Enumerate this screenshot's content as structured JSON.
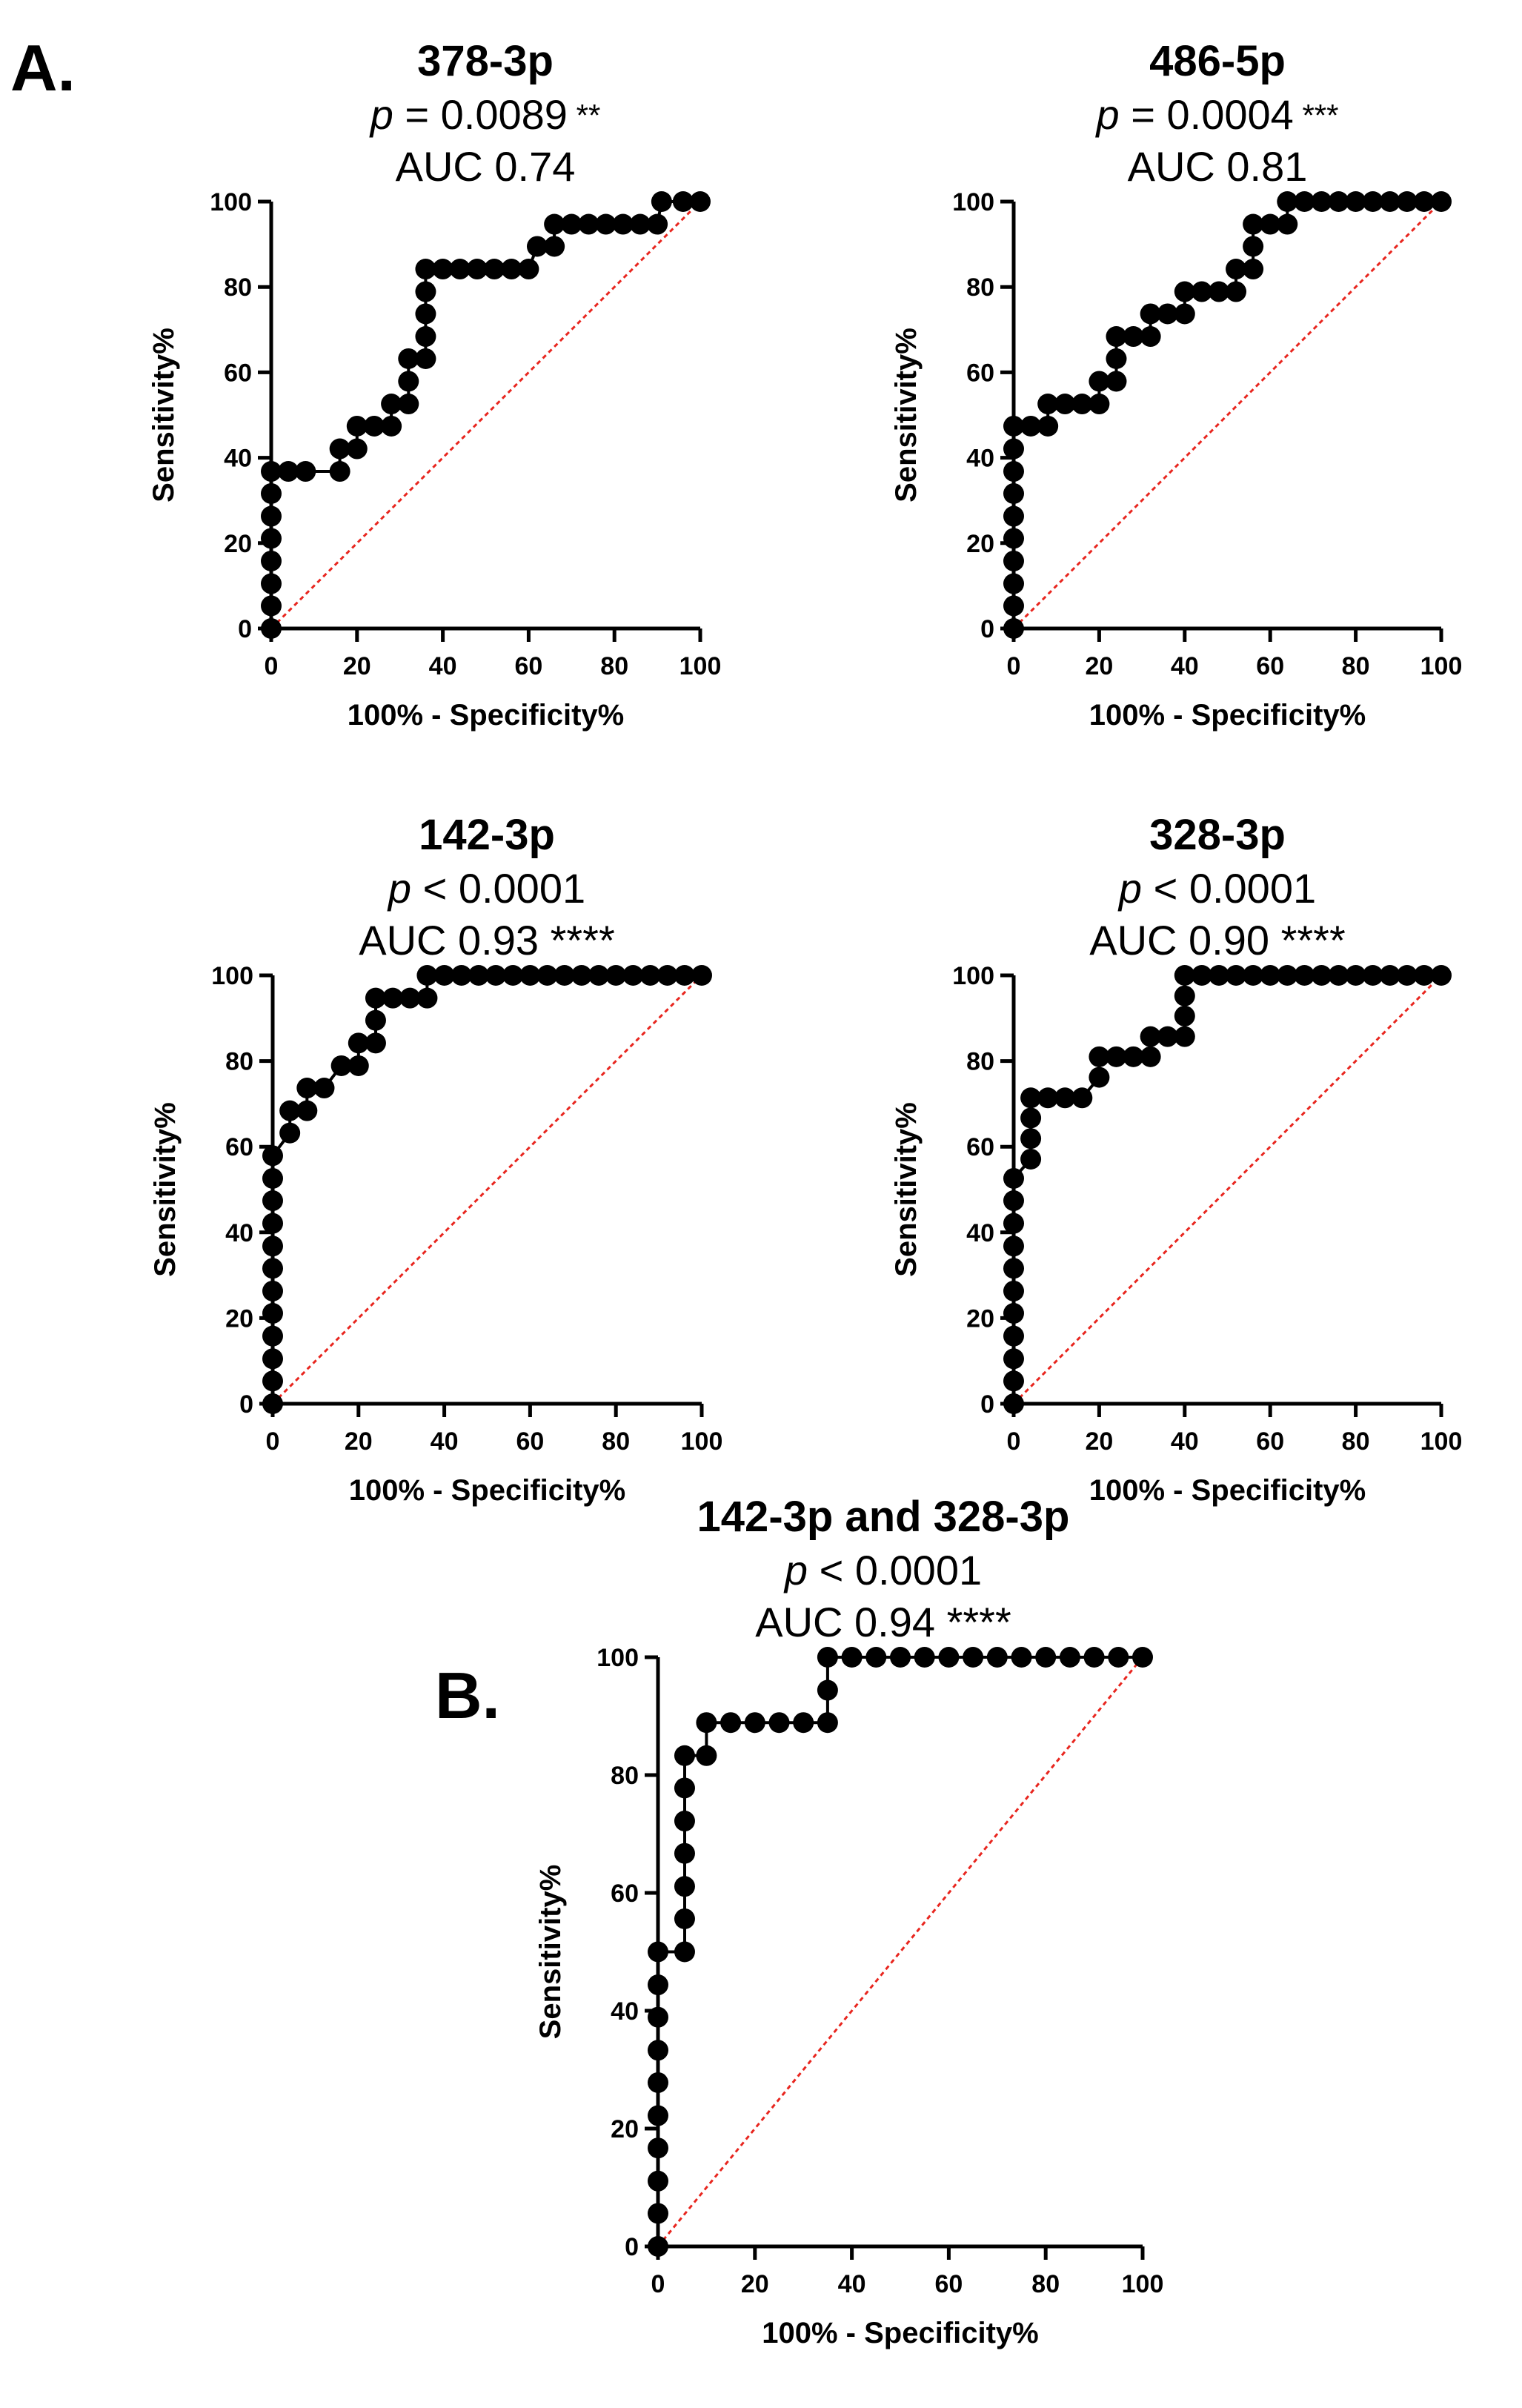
{
  "panel_labels": {
    "a": "A.",
    "b": "B."
  },
  "colors": {
    "curve": "#000000",
    "reference_line": "#e8261f",
    "axis": "#000000"
  },
  "chart_data": [
    {
      "type": "scatter",
      "panel": "A",
      "title": "378-3p",
      "p_prefix": "p",
      "p_text": " = 0.0089",
      "p_stars": " **",
      "auc_text": "AUC 0.74",
      "xlabel": "100% - Specificity%",
      "ylabel": "Sensitivity%",
      "xlim": [
        0,
        100
      ],
      "ylim": [
        0,
        100
      ],
      "xticks": [
        "0",
        "20",
        "40",
        "60",
        "80",
        "100"
      ],
      "yticks": [
        "0",
        "20",
        "40",
        "60",
        "80",
        "100"
      ],
      "reference_line": [
        [
          0,
          0
        ],
        [
          100,
          100
        ]
      ],
      "points": [
        [
          0,
          0
        ],
        [
          0,
          5.3
        ],
        [
          0,
          10.5
        ],
        [
          0,
          15.8
        ],
        [
          0,
          21.1
        ],
        [
          0,
          26.3
        ],
        [
          0,
          31.6
        ],
        [
          0,
          36.8
        ],
        [
          4,
          36.8
        ],
        [
          8,
          36.8
        ],
        [
          16,
          36.8
        ],
        [
          16,
          42.1
        ],
        [
          20,
          42.1
        ],
        [
          20,
          47.4
        ],
        [
          24,
          47.4
        ],
        [
          28,
          47.4
        ],
        [
          28,
          52.6
        ],
        [
          32,
          52.6
        ],
        [
          32,
          57.9
        ],
        [
          32,
          63.2
        ],
        [
          36,
          63.2
        ],
        [
          36,
          68.4
        ],
        [
          36,
          73.7
        ],
        [
          36,
          78.9
        ],
        [
          36,
          84.2
        ],
        [
          40,
          84.2
        ],
        [
          44,
          84.2
        ],
        [
          48,
          84.2
        ],
        [
          52,
          84.2
        ],
        [
          56,
          84.2
        ],
        [
          60,
          84.2
        ],
        [
          62,
          89.5
        ],
        [
          66,
          89.5
        ],
        [
          66,
          94.7
        ],
        [
          70,
          94.7
        ],
        [
          74,
          94.7
        ],
        [
          78,
          94.7
        ],
        [
          82,
          94.7
        ],
        [
          86,
          94.7
        ],
        [
          90,
          94.7
        ],
        [
          91,
          100
        ],
        [
          96,
          100
        ],
        [
          100,
          100
        ]
      ]
    },
    {
      "type": "scatter",
      "panel": "A",
      "title": "486-5p",
      "p_prefix": "p",
      "p_text": " = 0.0004",
      "p_stars": " ***",
      "auc_text": "AUC 0.81",
      "xlabel": "100% - Specificity%",
      "ylabel": "Sensitivity%",
      "xlim": [
        0,
        100
      ],
      "ylim": [
        0,
        100
      ],
      "xticks": [
        "0",
        "20",
        "40",
        "60",
        "80",
        "100"
      ],
      "yticks": [
        "0",
        "20",
        "40",
        "60",
        "80",
        "100"
      ],
      "reference_line": [
        [
          0,
          0
        ],
        [
          100,
          100
        ]
      ],
      "points": [
        [
          0,
          0
        ],
        [
          0,
          5.3
        ],
        [
          0,
          10.5
        ],
        [
          0,
          15.8
        ],
        [
          0,
          21.1
        ],
        [
          0,
          26.3
        ],
        [
          0,
          31.6
        ],
        [
          0,
          36.8
        ],
        [
          0,
          42.1
        ],
        [
          0,
          47.4
        ],
        [
          4,
          47.4
        ],
        [
          8,
          47.4
        ],
        [
          8,
          52.6
        ],
        [
          12,
          52.6
        ],
        [
          16,
          52.6
        ],
        [
          20,
          52.6
        ],
        [
          20,
          57.9
        ],
        [
          24,
          57.9
        ],
        [
          24,
          63.2
        ],
        [
          24,
          68.4
        ],
        [
          28,
          68.4
        ],
        [
          32,
          68.4
        ],
        [
          32,
          73.7
        ],
        [
          36,
          73.7
        ],
        [
          40,
          73.7
        ],
        [
          40,
          78.9
        ],
        [
          44,
          78.9
        ],
        [
          48,
          78.9
        ],
        [
          52,
          78.9
        ],
        [
          52,
          84.2
        ],
        [
          56,
          84.2
        ],
        [
          56,
          89.5
        ],
        [
          56,
          94.7
        ],
        [
          60,
          94.7
        ],
        [
          64,
          94.7
        ],
        [
          64,
          100
        ],
        [
          68,
          100
        ],
        [
          72,
          100
        ],
        [
          76,
          100
        ],
        [
          80,
          100
        ],
        [
          84,
          100
        ],
        [
          88,
          100
        ],
        [
          92,
          100
        ],
        [
          96,
          100
        ],
        [
          100,
          100
        ]
      ]
    },
    {
      "type": "scatter",
      "panel": "A",
      "title": "142-3p",
      "p_prefix": "p",
      "p_text": " < 0.0001",
      "p_stars": "",
      "auc_text": "AUC 0.93 ****",
      "xlabel": "100% - Specificity%",
      "ylabel": "Sensitivity%",
      "xlim": [
        0,
        100
      ],
      "ylim": [
        0,
        100
      ],
      "xticks": [
        "0",
        "20",
        "40",
        "60",
        "80",
        "100"
      ],
      "yticks": [
        "0",
        "20",
        "40",
        "60",
        "80",
        "100"
      ],
      "reference_line": [
        [
          0,
          0
        ],
        [
          100,
          100
        ]
      ],
      "points": [
        [
          0,
          0
        ],
        [
          0,
          5.3
        ],
        [
          0,
          10.5
        ],
        [
          0,
          15.8
        ],
        [
          0,
          21.1
        ],
        [
          0,
          26.3
        ],
        [
          0,
          31.6
        ],
        [
          0,
          36.8
        ],
        [
          0,
          42.1
        ],
        [
          0,
          47.4
        ],
        [
          0,
          52.6
        ],
        [
          0,
          57.9
        ],
        [
          4,
          63.2
        ],
        [
          4,
          68.4
        ],
        [
          8,
          68.4
        ],
        [
          8,
          73.7
        ],
        [
          12,
          73.7
        ],
        [
          16,
          78.9
        ],
        [
          20,
          78.9
        ],
        [
          20,
          84.2
        ],
        [
          24,
          84.2
        ],
        [
          24,
          89.5
        ],
        [
          24,
          94.7
        ],
        [
          28,
          94.7
        ],
        [
          32,
          94.7
        ],
        [
          36,
          94.7
        ],
        [
          36,
          100
        ],
        [
          40,
          100
        ],
        [
          44,
          100
        ],
        [
          48,
          100
        ],
        [
          52,
          100
        ],
        [
          56,
          100
        ],
        [
          60,
          100
        ],
        [
          64,
          100
        ],
        [
          68,
          100
        ],
        [
          72,
          100
        ],
        [
          76,
          100
        ],
        [
          80,
          100
        ],
        [
          84,
          100
        ],
        [
          88,
          100
        ],
        [
          92,
          100
        ],
        [
          96,
          100
        ],
        [
          100,
          100
        ]
      ]
    },
    {
      "type": "scatter",
      "panel": "A",
      "title": "328-3p",
      "p_prefix": "p",
      "p_text": " < 0.0001",
      "p_stars": "",
      "auc_text": "AUC 0.90 ****",
      "xlabel": "100% - Specificity%",
      "ylabel": "Sensitivity%",
      "xlim": [
        0,
        100
      ],
      "ylim": [
        0,
        100
      ],
      "xticks": [
        "0",
        "20",
        "40",
        "60",
        "80",
        "100"
      ],
      "yticks": [
        "0",
        "20",
        "40",
        "60",
        "80",
        "100"
      ],
      "reference_line": [
        [
          0,
          0
        ],
        [
          100,
          100
        ]
      ],
      "points": [
        [
          0,
          0
        ],
        [
          0,
          5.3
        ],
        [
          0,
          10.5
        ],
        [
          0,
          15.8
        ],
        [
          0,
          21.1
        ],
        [
          0,
          26.3
        ],
        [
          0,
          31.6
        ],
        [
          0,
          36.8
        ],
        [
          0,
          42.1
        ],
        [
          0,
          47.4
        ],
        [
          0,
          52.6
        ],
        [
          4,
          57.1
        ],
        [
          4,
          61.9
        ],
        [
          4,
          66.7
        ],
        [
          4,
          71.4
        ],
        [
          8,
          71.4
        ],
        [
          12,
          71.4
        ],
        [
          16,
          71.4
        ],
        [
          20,
          76.2
        ],
        [
          20,
          81
        ],
        [
          24,
          81
        ],
        [
          28,
          81
        ],
        [
          32,
          81
        ],
        [
          32,
          85.7
        ],
        [
          36,
          85.7
        ],
        [
          40,
          85.7
        ],
        [
          40,
          90.5
        ],
        [
          40,
          95.2
        ],
        [
          40,
          100
        ],
        [
          44,
          100
        ],
        [
          48,
          100
        ],
        [
          52,
          100
        ],
        [
          56,
          100
        ],
        [
          60,
          100
        ],
        [
          64,
          100
        ],
        [
          68,
          100
        ],
        [
          72,
          100
        ],
        [
          76,
          100
        ],
        [
          80,
          100
        ],
        [
          84,
          100
        ],
        [
          88,
          100
        ],
        [
          92,
          100
        ],
        [
          96,
          100
        ],
        [
          100,
          100
        ]
      ]
    },
    {
      "type": "scatter",
      "panel": "B",
      "title": "142-3p and 328-3p",
      "p_prefix": "p",
      "p_text": " < 0.0001",
      "p_stars": "",
      "auc_text": "AUC 0.94 ****",
      "xlabel": "100% - Specificity%",
      "ylabel": "Sensitivity%",
      "xlim": [
        0,
        100
      ],
      "ylim": [
        0,
        100
      ],
      "xticks": [
        "0",
        "20",
        "40",
        "60",
        "80",
        "100"
      ],
      "yticks": [
        "0",
        "20",
        "40",
        "60",
        "80",
        "100"
      ],
      "reference_line": [
        [
          0,
          0
        ],
        [
          100,
          100
        ]
      ],
      "points": [
        [
          0,
          0
        ],
        [
          0,
          5.6
        ],
        [
          0,
          11.1
        ],
        [
          0,
          16.7
        ],
        [
          0,
          22.2
        ],
        [
          0,
          27.8
        ],
        [
          0,
          33.3
        ],
        [
          0,
          38.9
        ],
        [
          0,
          44.4
        ],
        [
          0,
          50
        ],
        [
          5.5,
          50
        ],
        [
          5.5,
          55.6
        ],
        [
          5.5,
          61.1
        ],
        [
          5.5,
          66.7
        ],
        [
          5.5,
          72.2
        ],
        [
          5.5,
          77.8
        ],
        [
          5.5,
          83.3
        ],
        [
          10,
          83.3
        ],
        [
          10,
          88.9
        ],
        [
          15,
          88.9
        ],
        [
          20,
          88.9
        ],
        [
          25,
          88.9
        ],
        [
          30,
          88.9
        ],
        [
          35,
          88.9
        ],
        [
          35,
          94.4
        ],
        [
          35,
          100
        ],
        [
          40,
          100
        ],
        [
          45,
          100
        ],
        [
          50,
          100
        ],
        [
          55,
          100
        ],
        [
          60,
          100
        ],
        [
          65,
          100
        ],
        [
          70,
          100
        ],
        [
          75,
          100
        ],
        [
          80,
          100
        ],
        [
          85,
          100
        ],
        [
          90,
          100
        ],
        [
          95,
          100
        ],
        [
          100,
          100
        ]
      ]
    }
  ]
}
